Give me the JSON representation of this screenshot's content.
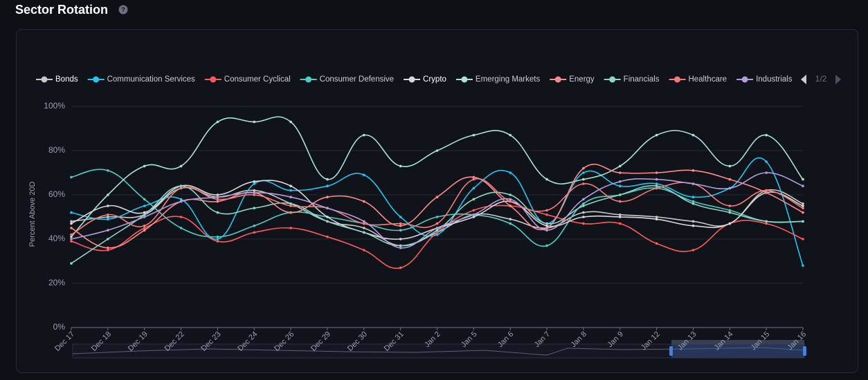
{
  "chart_data": {
    "type": "line",
    "title": "Sector Rotation",
    "y_label": "Percent Above 20D",
    "legend_page": "1/2",
    "categories": [
      "Dec 17",
      "Dec 18",
      "Dec 19",
      "Dec 22",
      "Dec 23",
      "Dec 24",
      "Dec 26",
      "Dec 29",
      "Dec 30",
      "Dec 31",
      "Jan 2",
      "Jan 5",
      "Jan 6",
      "Jan 7",
      "Jan 8",
      "Jan 9",
      "Jan 12",
      "Jan 13",
      "Jan 14",
      "Jan 15",
      "Jan 16"
    ],
    "ylim": [
      0,
      100
    ],
    "yticks": [
      {
        "value": 0,
        "label": "0%"
      },
      {
        "value": 20,
        "label": "20%"
      },
      {
        "value": 40,
        "label": "40%"
      },
      {
        "value": 60,
        "label": "60%"
      },
      {
        "value": 80,
        "label": "80%"
      },
      {
        "value": 100,
        "label": "100%"
      }
    ],
    "grid": true,
    "series": [
      {
        "name": "Bonds",
        "color": "#c9c9c9",
        "values": [
          48,
          50,
          51,
          63,
          59,
          62,
          56,
          48,
          45,
          37,
          43,
          51,
          49,
          45,
          52,
          51,
          50,
          48,
          47,
          62,
          56
        ]
      },
      {
        "name": "Communication Services",
        "color": "#1fc6f2",
        "values": [
          52,
          49,
          55,
          58,
          40,
          65,
          62,
          64,
          69,
          50,
          42,
          63,
          70,
          47,
          70,
          64,
          65,
          59,
          63,
          75,
          28
        ]
      },
      {
        "name": "Consumer Cyclical",
        "color": "#ff5b5b",
        "values": [
          39,
          35,
          45,
          50,
          39,
          43,
          45,
          41,
          35,
          27,
          43,
          53,
          55,
          51,
          47,
          47,
          38,
          35,
          47,
          47,
          40
        ]
      },
      {
        "name": "Consumer Defensive",
        "color": "#4ecdc4",
        "values": [
          68,
          71,
          58,
          45,
          41,
          46,
          52,
          50,
          47,
          44,
          50,
          51,
          47,
          37,
          56,
          60,
          63,
          57,
          53,
          48,
          48
        ]
      },
      {
        "name": "Crypto",
        "color": "#d8d8d8",
        "values": [
          47,
          55,
          52,
          64,
          60,
          66,
          64,
          50,
          43,
          40,
          45,
          50,
          57,
          46,
          50,
          50,
          49,
          46,
          47,
          61,
          55
        ]
      },
      {
        "name": "Emerging Markets",
        "color": "#a8e6cf",
        "values": [
          41,
          60,
          73,
          73,
          93,
          93,
          93,
          67,
          87,
          73,
          80,
          87,
          87,
          67,
          67,
          73,
          87,
          87,
          73,
          87,
          67
        ]
      },
      {
        "name": "Energy",
        "color": "#ff8b8b",
        "values": [
          45,
          36,
          44,
          57,
          57,
          61,
          52,
          59,
          57,
          46,
          59,
          68,
          55,
          45,
          72,
          70,
          70,
          71,
          67,
          61,
          52
        ]
      },
      {
        "name": "Financials",
        "color": "#88d8c8",
        "values": [
          29,
          40,
          51,
          64,
          52,
          54,
          56,
          48,
          43,
          37,
          44,
          58,
          60,
          47,
          55,
          60,
          64,
          56,
          52,
          48,
          48
        ]
      },
      {
        "name": "Healthcare",
        "color": "#f47c7c",
        "values": [
          42,
          51,
          46,
          63,
          58,
          60,
          55,
          54,
          47,
          47,
          47,
          67,
          57,
          53,
          65,
          57,
          63,
          65,
          55,
          62,
          54
        ]
      },
      {
        "name": "Industrials",
        "color": "#b39ddb",
        "values": [
          40,
          44,
          50,
          57,
          59,
          61,
          59,
          54,
          48,
          36,
          45,
          51,
          58,
          44,
          58,
          66,
          67,
          65,
          63,
          70,
          64
        ]
      }
    ]
  }
}
